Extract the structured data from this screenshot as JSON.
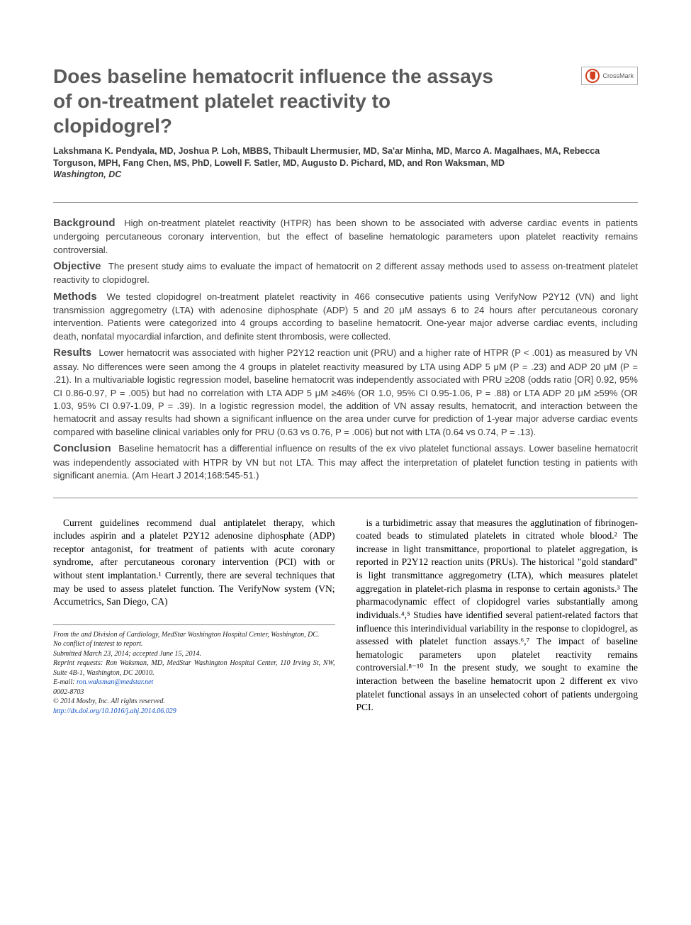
{
  "title": "Does baseline hematocrit influence the assays of on-treatment platelet reactivity to clopidogrel?",
  "crossmark_label": "CrossMark",
  "authors": "Lakshmana K. Pendyala, MD, Joshua P. Loh, MBBS, Thibault Lhermusier, MD, Sa'ar Minha, MD, Marco A. Magalhaes, MA, Rebecca Torguson, MPH, Fang Chen, MS, PhD, Lowell F. Satler, MD, Augusto D. Pichard, MD, and Ron Waksman, MD",
  "location": "Washington, DC",
  "abstract": {
    "background": {
      "label": "Background",
      "text": "High on-treatment platelet reactivity (HTPR) has been shown to be associated with adverse cardiac events in patients undergoing percutaneous coronary intervention, but the effect of baseline hematologic parameters upon platelet reactivity remains controversial."
    },
    "objective": {
      "label": "Objective",
      "text": "The present study aims to evaluate the impact of hematocrit on 2 different assay methods used to assess on-treatment platelet reactivity to clopidogrel."
    },
    "methods": {
      "label": "Methods",
      "text": "We tested clopidogrel on-treatment platelet reactivity in 466 consecutive patients using VerifyNow P2Y12 (VN) and light transmission aggregometry (LTA) with adenosine diphosphate (ADP) 5 and 20 μM assays 6 to 24 hours after percutaneous coronary intervention. Patients were categorized into 4 groups according to baseline hematocrit. One-year major adverse cardiac events, including death, nonfatal myocardial infarction, and definite stent thrombosis, were collected."
    },
    "results": {
      "label": "Results",
      "text": "Lower hematocrit was associated with higher P2Y12 reaction unit (PRU) and a higher rate of HTPR (P < .001) as measured by VN assay. No differences were seen among the 4 groups in platelet reactivity measured by LTA using ADP 5 μM (P = .23) and ADP 20 μM (P = .21). In a multivariable logistic regression model, baseline hematocrit was independently associated with PRU ≥208 (odds ratio [OR] 0.92, 95% CI 0.86-0.97, P = .005) but had no correlation with LTA ADP 5 μM ≥46% (OR 1.0, 95% CI 0.95-1.06, P = .88) or LTA ADP 20 μM ≥59% (OR 1.03, 95% CI 0.97-1.09, P = .39). In a logistic regression model, the addition of VN assay results, hematocrit, and interaction between the hematocrit and assay results had shown a significant influence on the area under curve for prediction of 1-year major adverse cardiac events compared with baseline clinical variables only for PRU (0.63 vs 0.76, P = .006) but not with LTA (0.64 vs 0.74, P = .13)."
    },
    "conclusion": {
      "label": "Conclusion",
      "text": "Baseline hematocrit has a differential influence on results of the ex vivo platelet functional assays. Lower baseline hematocrit was independently associated with HTPR by VN but not LTA. This may affect the interpretation of platelet function testing in patients with significant anemia. (Am Heart J 2014;168:545-51.)"
    }
  },
  "body": {
    "col1": "Current guidelines recommend dual antiplatelet therapy, which includes aspirin and a platelet P2Y12 adenosine diphosphate (ADP) receptor antagonist, for treatment of patients with acute coronary syndrome, after percutaneous coronary intervention (PCI) with or without stent implantation.¹ Currently, there are several techniques that may be used to assess platelet function. The VerifyNow system (VN; Accumetrics, San Diego, CA)",
    "col2": "is a turbidimetric assay that measures the agglutination of fibrinogen-coated beads to stimulated platelets in citrated whole blood.² The increase in light transmittance, proportional to platelet aggregation, is reported in P2Y12 reaction units (PRUs). The historical \"gold standard\" is light transmittance aggregometry (LTA), which measures platelet aggregation in platelet-rich plasma in response to certain agonists.³ The pharmacodynamic effect of clopidogrel varies substantially among individuals.⁴,⁵ Studies have identified several patient-related factors that influence this interindividual variability in the response to clopidogrel, as assessed with platelet function assays.⁶,⁷ The impact of baseline hematologic parameters upon platelet reactivity remains controversial.⁸⁻¹⁰ In the present study, we sought to examine the interaction between the baseline hematocrit upon 2 different ex vivo platelet functional assays in an unselected cohort of patients undergoing PCI."
  },
  "footnotes": {
    "from": "From the and Division of Cardiology, MedStar Washington Hospital Center, Washington, DC.",
    "conflict": "No conflict of interest to report.",
    "submitted": "Submitted March 23, 2014; accepted June 15, 2014.",
    "reprint": "Reprint requests: Ron Waksman, MD, MedStar Washington Hospital Center, 110 Irving St, NW, Suite 4B-1, Washington, DC 20010.",
    "email_label": "E-mail:",
    "email": "ron.waksman@medstar.net",
    "issn": "0002-8703",
    "copyright": "© 2014 Mosby, Inc. All rights reserved.",
    "doi": "http://dx.doi.org/10.1016/j.ahj.2014.06.029"
  },
  "colors": {
    "title": "#5a5a5a",
    "text": "#3a3a3a",
    "link": "#1050c0",
    "crossmark_border": "#d04020"
  }
}
